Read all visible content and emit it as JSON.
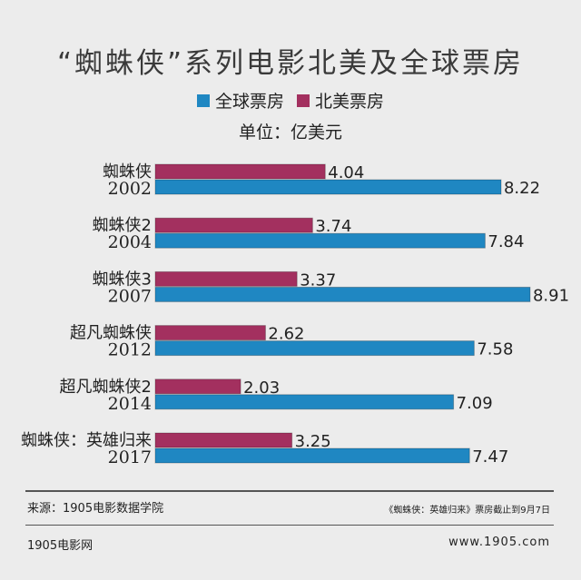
{
  "title": "“蜘蛛侠”系列电影北美及全球票房",
  "legend": {
    "global": "全球票房",
    "na": "北美票房"
  },
  "unit": "单位：亿美元",
  "colors": {
    "global": "#1f87c2",
    "na": "#a3305f",
    "background": "#ececec"
  },
  "chart_data": {
    "type": "bar",
    "orientation": "horizontal",
    "categories": [
      {
        "name": "蜘蛛侠",
        "year": "2002"
      },
      {
        "name": "蜘蛛侠2",
        "year": "2004"
      },
      {
        "name": "蜘蛛侠3",
        "year": "2007"
      },
      {
        "name": "超凡蜘蛛侠",
        "year": "2012"
      },
      {
        "name": "超凡蜘蛛侠2",
        "year": "2014"
      },
      {
        "name": "蜘蛛侠：英雄归来",
        "year": "2017"
      }
    ],
    "series": [
      {
        "name": "北美票房",
        "key": "na",
        "values": [
          4.04,
          3.74,
          3.37,
          2.62,
          2.03,
          3.25
        ]
      },
      {
        "name": "全球票房",
        "key": "global",
        "values": [
          8.22,
          7.84,
          8.91,
          7.58,
          7.09,
          7.47
        ]
      }
    ],
    "xlim": [
      0,
      9
    ],
    "grid": false,
    "legend_position": "top-center"
  },
  "footer": {
    "source": "来源：1905电影数据学院",
    "note": "《蜘蛛侠：英雄归来》票房截止到9月7日",
    "brand": "1905电影网",
    "site": "www.1905.com"
  }
}
